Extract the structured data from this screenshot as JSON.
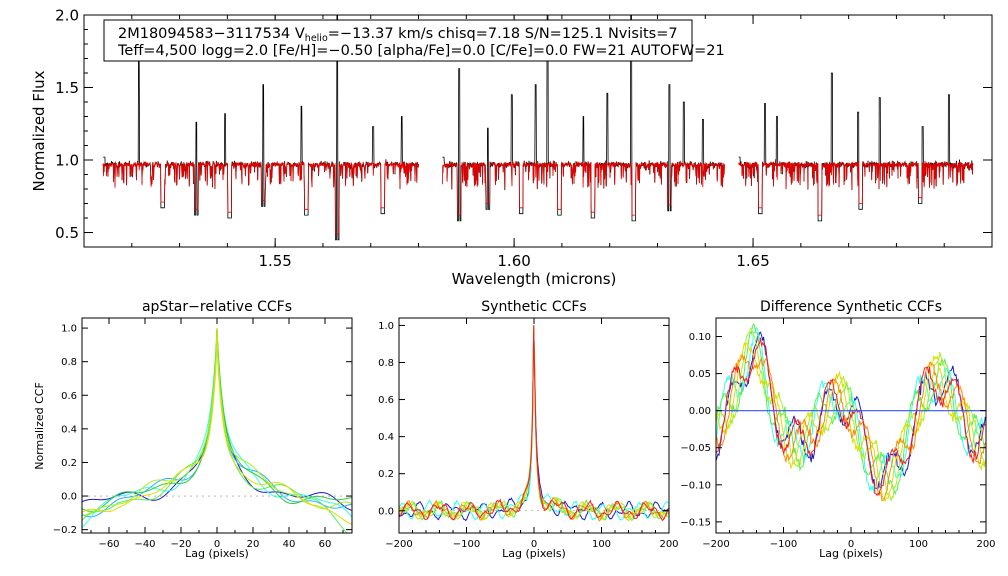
{
  "header": {
    "line1_prefix": "2M18094583−3117534  V",
    "line1_sub": "helio",
    "line1_suffix": "=−13.37 km/s  chisq=7.18  S/N=125.1  Nvisits=7",
    "line2": "Teff=4,500 logg=2.0 [Fe/H]=−0.50 [alpha/Fe]=0.0 [C/Fe]=0.0 FW=21 AUTOFW=21"
  },
  "colors": {
    "observed": "#000000",
    "model": "#e00000",
    "zero_line": "#3355ff",
    "visits": [
      "#1a1acc",
      "#2ab0ff",
      "#33ffee",
      "#55ee55",
      "#33cc33",
      "#aaee22",
      "#dddd00",
      "#ff8800",
      "#ee2222"
    ]
  },
  "chart_data": [
    {
      "type": "line",
      "id": "spectrum",
      "title": "",
      "xlabel": "Wavelength (microns)",
      "ylabel": "Normalized Flux",
      "xlim": [
        1.51,
        1.7
      ],
      "ylim": [
        0.4,
        2.0
      ],
      "xticks": [
        1.55,
        1.6,
        1.65
      ],
      "xtick_labels": [
        "1.55",
        "1.60",
        "1.65"
      ],
      "yticks": [
        0.5,
        1.0,
        1.5,
        2.0
      ],
      "ytick_labels": [
        "0.5",
        "1.0",
        "1.5",
        "2.0"
      ],
      "chips": [
        [
          1.514,
          1.58
        ],
        [
          1.585,
          1.644
        ],
        [
          1.647,
          1.696
        ]
      ],
      "continuum": 0.97,
      "emission_spikes": [
        {
          "x": 1.5215,
          "y": 1.7
        },
        {
          "x": 1.5335,
          "y": 1.26
        },
        {
          "x": 1.5395,
          "y": 1.32
        },
        {
          "x": 1.5475,
          "y": 1.52
        },
        {
          "x": 1.5555,
          "y": 1.37
        },
        {
          "x": 1.563,
          "y": 2.0
        },
        {
          "x": 1.5705,
          "y": 1.23
        },
        {
          "x": 1.5765,
          "y": 1.3
        },
        {
          "x": 1.5885,
          "y": 1.63
        },
        {
          "x": 1.5945,
          "y": 1.22
        },
        {
          "x": 1.5995,
          "y": 1.45
        },
        {
          "x": 1.6045,
          "y": 1.52
        },
        {
          "x": 1.607,
          "y": 2.0
        },
        {
          "x": 1.6145,
          "y": 1.3
        },
        {
          "x": 1.6195,
          "y": 1.46
        },
        {
          "x": 1.6245,
          "y": 2.0
        },
        {
          "x": 1.6325,
          "y": 1.52
        },
        {
          "x": 1.6355,
          "y": 1.4
        },
        {
          "x": 1.6395,
          "y": 1.28
        },
        {
          "x": 1.6525,
          "y": 1.39
        },
        {
          "x": 1.655,
          "y": 1.3
        },
        {
          "x": 1.6665,
          "y": 1.6
        },
        {
          "x": 1.672,
          "y": 1.33
        },
        {
          "x": 1.6765,
          "y": 1.43
        },
        {
          "x": 1.6855,
          "y": 1.23
        },
        {
          "x": 1.691,
          "y": 1.45
        }
      ],
      "absorption_lines": [
        {
          "x": 1.5265,
          "y": 0.67
        },
        {
          "x": 1.5335,
          "y": 0.62
        },
        {
          "x": 1.5405,
          "y": 0.6
        },
        {
          "x": 1.5475,
          "y": 0.68
        },
        {
          "x": 1.5565,
          "y": 0.62
        },
        {
          "x": 1.563,
          "y": 0.45
        },
        {
          "x": 1.5725,
          "y": 0.63
        },
        {
          "x": 1.5885,
          "y": 0.58
        },
        {
          "x": 1.5945,
          "y": 0.66
        },
        {
          "x": 1.6015,
          "y": 0.63
        },
        {
          "x": 1.6095,
          "y": 0.62
        },
        {
          "x": 1.6165,
          "y": 0.6
        },
        {
          "x": 1.625,
          "y": 0.58
        },
        {
          "x": 1.6325,
          "y": 0.65
        },
        {
          "x": 1.6515,
          "y": 0.63
        },
        {
          "x": 1.664,
          "y": 0.58
        },
        {
          "x": 1.6725,
          "y": 0.66
        },
        {
          "x": 1.685,
          "y": 0.7
        }
      ],
      "series": [
        {
          "name": "observed",
          "color": "#000000"
        },
        {
          "name": "model",
          "color": "#e00000"
        }
      ]
    },
    {
      "type": "line",
      "id": "apstar-ccf",
      "title": "apStar−relative CCFs",
      "xlabel": "Lag (pixels)",
      "ylabel": "Normalized CCF",
      "xlim": [
        -75,
        75
      ],
      "ylim": [
        -0.22,
        1.06
      ],
      "xticks": [
        -60,
        -40,
        -20,
        0,
        20,
        40,
        60
      ],
      "xtick_labels": [
        "−60",
        "−40",
        "−20",
        "0",
        "20",
        "40",
        "60"
      ],
      "yticks": [
        -0.2,
        0.0,
        0.2,
        0.4,
        0.6,
        0.8,
        1.0
      ],
      "ytick_labels": [
        "−0.2",
        "0.0",
        "0.2",
        "0.4",
        "0.6",
        "0.8",
        "1.0"
      ],
      "peak": {
        "x": 0,
        "y": 1.0
      },
      "shoulder_at_lag_20": [
        0.44,
        0.38
      ],
      "tail_range_at_lag_60": [
        -0.15,
        0.05
      ],
      "n_visits": 7
    },
    {
      "type": "line",
      "id": "synthetic-ccf",
      "title": "Synthetic CCFs",
      "xlabel": "Lag (pixels)",
      "ylabel": "",
      "xlim": [
        -200,
        200
      ],
      "ylim": [
        -0.12,
        1.04
      ],
      "xticks": [
        -200,
        -100,
        0,
        100,
        200
      ],
      "xtick_labels": [
        "−200",
        "−100",
        "0",
        "100",
        "200"
      ],
      "yticks": [
        0.0,
        0.2,
        0.4,
        0.6,
        0.8,
        1.0
      ],
      "ytick_labels": [
        "0.0",
        "0.2",
        "0.4",
        "0.6",
        "0.8",
        "1.0"
      ],
      "peak": {
        "x": 0,
        "y": 1.0
      },
      "noise_range": [
        -0.08,
        0.06
      ],
      "n_visits": 7
    },
    {
      "type": "line",
      "id": "difference-ccf",
      "title": "Difference Synthetic CCFs",
      "xlabel": "Lag (pixels)",
      "ylabel": "",
      "xlim": [
        -200,
        200
      ],
      "ylim": [
        -0.165,
        0.125
      ],
      "xticks": [
        -200,
        -100,
        0,
        100,
        200
      ],
      "xtick_labels": [
        "−200",
        "−100",
        "0",
        "100",
        "200"
      ],
      "yticks": [
        -0.15,
        -0.1,
        -0.05,
        0.0,
        0.05,
        0.1
      ],
      "ytick_labels": [
        "−0.15",
        "−0.10",
        "−0.05",
        "0.00",
        "0.05",
        "0.10"
      ],
      "zero_line": 0.0,
      "value_range": [
        -0.15,
        0.12
      ],
      "n_visits": 7
    }
  ]
}
